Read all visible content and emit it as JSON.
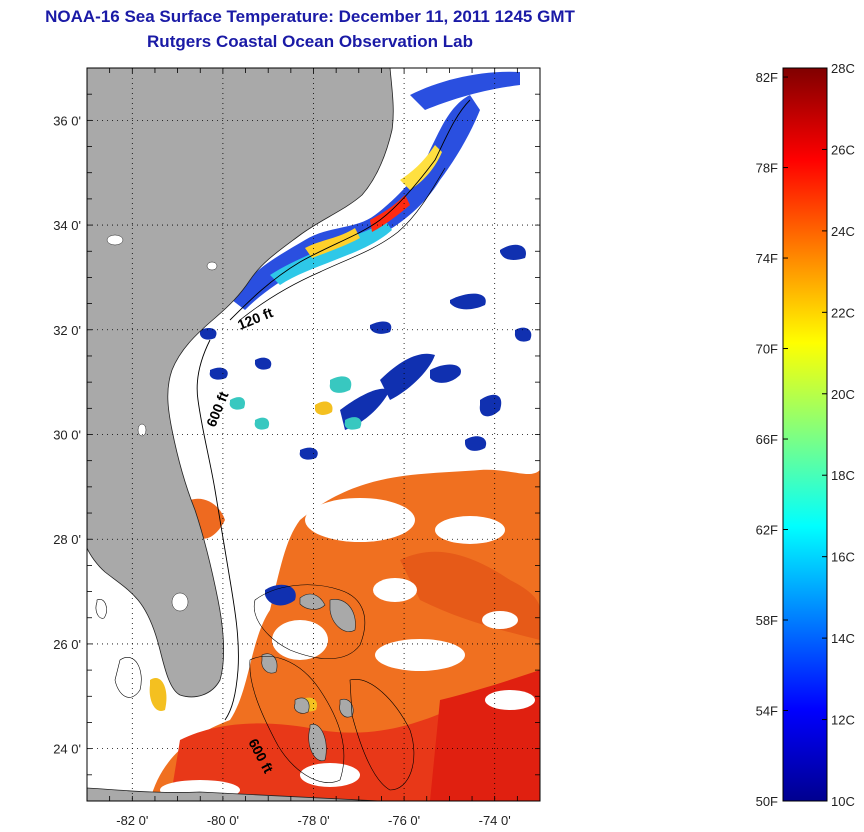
{
  "title": {
    "line1": "NOAA-16 Sea Surface Temperature:  December 11, 2011 1245 GMT",
    "line2": "Rutgers Coastal Ocean Observation Lab"
  },
  "map": {
    "lon_range": [
      -83,
      -73
    ],
    "lat_range": [
      23,
      37
    ],
    "lat_ticks": [
      {
        "value": 36,
        "label": "36 0'"
      },
      {
        "value": 34,
        "label": "34 0'"
      },
      {
        "value": 32,
        "label": "32 0'"
      },
      {
        "value": 30,
        "label": "30 0'"
      },
      {
        "value": 28,
        "label": "28 0'"
      },
      {
        "value": 26,
        "label": "26 0'"
      },
      {
        "value": 24,
        "label": "24 0'"
      }
    ],
    "lon_ticks": [
      {
        "value": -82,
        "label": "-82 0'"
      },
      {
        "value": -80,
        "label": "-80 0'"
      },
      {
        "value": -78,
        "label": "-78 0'"
      },
      {
        "value": -76,
        "label": "-76 0'"
      },
      {
        "value": -74,
        "label": "-74 0'"
      }
    ],
    "land_color": "#a9a9a9",
    "cloud_color": "#ffffff",
    "contours": [
      {
        "label": "120 ft"
      },
      {
        "label": "600 ft"
      },
      {
        "label": "600 ft"
      }
    ]
  },
  "colorbar": {
    "fahrenheit_ticks": [
      "82F",
      "78F",
      "74F",
      "70F",
      "66F",
      "62F",
      "58F",
      "54F",
      "50F"
    ],
    "celsius_ticks": [
      "28C",
      "26C",
      "24C",
      "22C",
      "20C",
      "18C",
      "16C",
      "14C",
      "12C",
      "10C"
    ],
    "range_c": [
      10,
      28
    ],
    "colors": [
      "#00008f",
      "#0000ff",
      "#0080ff",
      "#00ffff",
      "#80ff80",
      "#ffff00",
      "#ff8000",
      "#ff0000",
      "#800000"
    ]
  }
}
